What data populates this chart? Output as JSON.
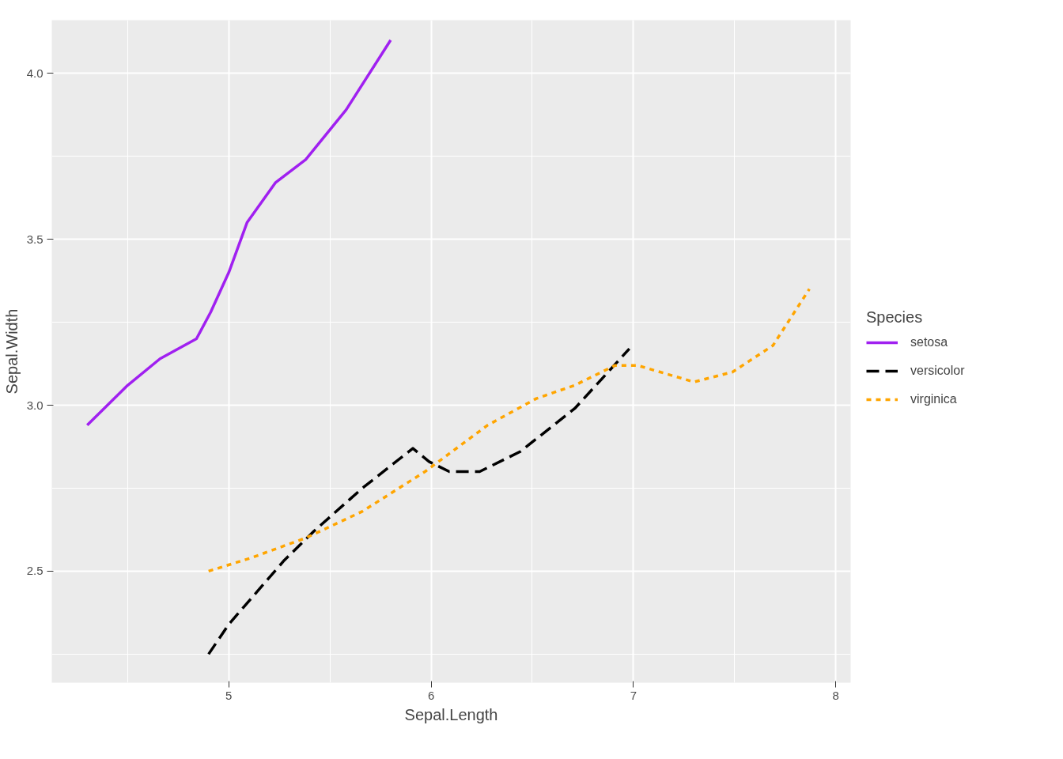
{
  "chart_data": {
    "type": "line",
    "xlabel": "Sepal.Length",
    "ylabel": "Sepal.Width",
    "legend_title": "Species",
    "legend": "right",
    "grid": true,
    "xlim": [
      4.125,
      8.074
    ],
    "ylim": [
      2.164,
      4.16
    ],
    "xticks": [
      {
        "value": 4.5,
        "label": null
      },
      5,
      {
        "value": 5.5,
        "label": null
      },
      6,
      {
        "value": 6.5,
        "label": null
      },
      7,
      {
        "value": 7.5,
        "label": null
      },
      8
    ],
    "yticks": [
      {
        "value": 2.25,
        "label": null
      },
      {
        "value": 2.5,
        "label": "2.5"
      },
      {
        "value": 2.75,
        "label": null
      },
      {
        "value": 3.0,
        "label": "3.0"
      },
      {
        "value": 3.25,
        "label": null
      },
      {
        "value": 3.5,
        "label": "3.5"
      },
      {
        "value": 3.75,
        "label": null
      },
      {
        "value": 4.0,
        "label": "4.0"
      }
    ],
    "series": [
      {
        "name": "setosa",
        "color": "#a020f0",
        "line_style": "solid",
        "x": [
          4.3,
          4.5,
          4.66,
          4.84,
          4.91,
          5.0,
          5.09,
          5.23,
          5.38,
          5.58,
          5.8
        ],
        "values": [
          2.94,
          3.06,
          3.14,
          3.2,
          3.28,
          3.4,
          3.55,
          3.67,
          3.74,
          3.89,
          4.1
        ]
      },
      {
        "name": "versicolor",
        "color": "#000000",
        "line_style": "dashed",
        "x": [
          4.9,
          5.0,
          5.27,
          5.42,
          5.66,
          5.91,
          5.99,
          6.09,
          6.24,
          6.44,
          6.71,
          6.98
        ],
        "values": [
          2.25,
          2.34,
          2.53,
          2.62,
          2.75,
          2.87,
          2.83,
          2.8,
          2.8,
          2.86,
          2.99,
          3.17
        ]
      },
      {
        "name": "virginica",
        "color": "#ffa500",
        "line_style": "dotted",
        "x": [
          4.9,
          5.11,
          5.38,
          5.66,
          5.97,
          6.28,
          6.52,
          6.71,
          6.91,
          7.02,
          7.3,
          7.49,
          7.69,
          7.87
        ],
        "values": [
          2.5,
          2.54,
          2.6,
          2.68,
          2.8,
          2.94,
          3.02,
          3.06,
          3.12,
          3.12,
          3.07,
          3.1,
          3.18,
          3.35
        ]
      }
    ]
  }
}
